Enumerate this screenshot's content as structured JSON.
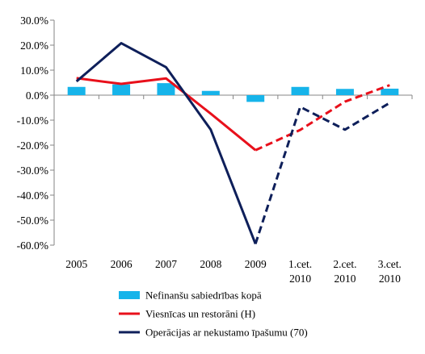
{
  "chart_data": {
    "type": "bar+line",
    "categories": [
      "2005",
      "2006",
      "2007",
      "2008",
      "2009",
      "1.cet. 2010",
      "2.cet. 2010",
      "3.cet. 2010"
    ],
    "category_lines": [
      [
        "2005"
      ],
      [
        "2006"
      ],
      [
        "2007"
      ],
      [
        "2008"
      ],
      [
        "2009"
      ],
      [
        "1.cet.",
        "2010"
      ],
      [
        "2.cet.",
        "2010"
      ],
      [
        "3.cet.",
        "2010"
      ]
    ],
    "ylim": [
      -60,
      30
    ],
    "ytick_step": 10,
    "ytick_labels": [
      "30.0%",
      "20.0%",
      "10.0%",
      "0.0%",
      "-10.0%",
      "-20.0%",
      "-30.0%",
      "-40.0%",
      "-50.0%",
      "-60.0%"
    ],
    "grid": false,
    "legend_position": "bottom",
    "series": [
      {
        "name": "Nefinanšu sabiedrības kopā",
        "kind": "bar",
        "color": "#16b4ea",
        "values": [
          3.3,
          4.3,
          4.8,
          1.7,
          -2.7,
          3.3,
          2.5,
          2.6
        ]
      },
      {
        "name": "Viesnīcas un restorāni (H)",
        "kind": "line",
        "color": "#e8101b",
        "values": [
          6.8,
          4.5,
          6.7,
          -7.4,
          -22.0,
          -13.9,
          -2.6,
          4.0
        ],
        "dashed_from_index": 4
      },
      {
        "name": "Operācijas ar nekustamo īpašumu (70)",
        "kind": "line",
        "color": "#0e1f5a",
        "values": [
          5.5,
          20.8,
          11.2,
          -13.8,
          -59.5,
          -4.7,
          -13.8,
          -3.1
        ],
        "dashed_from_index": 4
      }
    ]
  }
}
